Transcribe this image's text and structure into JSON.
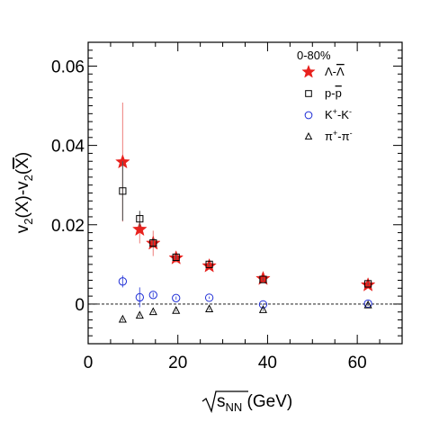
{
  "chart_data": {
    "type": "scatter",
    "title": "",
    "xlabel": "√s_NN (GeV)",
    "xlabel_parts": {
      "main": "s",
      "sub": "NN",
      "unit": " (GeV)"
    },
    "ylabel": "v2(X)-v2(X̄)",
    "ylabel_parts": {
      "v": "v",
      "sub": "2",
      "x": "(X)-",
      "xbar": "X",
      "close": ")"
    },
    "xlim": [
      0,
      70
    ],
    "ylim": [
      -0.01,
      0.066
    ],
    "x_ticks": [
      0,
      20,
      40,
      60
    ],
    "y_ticks": [
      0,
      0.02,
      0.04,
      0.06
    ],
    "x_tick_labels": [
      "0",
      "20",
      "40",
      "60"
    ],
    "y_tick_labels": [
      "0",
      "0.02",
      "0.04",
      "0.06"
    ],
    "legend_header": "0-80%",
    "legend_position": "top-right",
    "grid": false,
    "reference_line": {
      "y": 0,
      "style": "dashed"
    },
    "series": [
      {
        "name": "Λ-Λ̄",
        "label_parts": [
          "Λ-",
          "Λ"
        ],
        "marker": "star",
        "color": "#e8211d",
        "errcolor": "#f08a87",
        "points": [
          {
            "x": 7.7,
            "y": 0.0358,
            "err": 0.015
          },
          {
            "x": 11.5,
            "y": 0.0188,
            "err": 0.0035
          },
          {
            "x": 14.5,
            "y": 0.0153,
            "err": 0.0032
          },
          {
            "x": 19.6,
            "y": 0.0116,
            "err": 0.0012
          },
          {
            "x": 27,
            "y": 0.0096,
            "err": 0.0007
          },
          {
            "x": 39,
            "y": 0.0064,
            "err": 0.0005
          },
          {
            "x": 62.4,
            "y": 0.0048,
            "err": 0.0005
          }
        ]
      },
      {
        "name": "p-p̄",
        "label_parts": [
          "p-",
          "p"
        ],
        "marker": "square",
        "color": "#000000",
        "errcolor": "#555555",
        "points": [
          {
            "x": 7.7,
            "y": 0.0285,
            "err": 0.0075
          },
          {
            "x": 11.5,
            "y": 0.0215,
            "err": 0.002
          },
          {
            "x": 14.5,
            "y": 0.0154,
            "err": 0.0012
          },
          {
            "x": 19.6,
            "y": 0.0118,
            "err": 0.0006
          },
          {
            "x": 27,
            "y": 0.01,
            "err": 0.0004
          },
          {
            "x": 39,
            "y": 0.0062,
            "err": 0.0003
          },
          {
            "x": 62.4,
            "y": 0.0051,
            "err": 0.0003
          }
        ]
      },
      {
        "name": "K+-K-",
        "label_parts": [
          "K",
          "+",
          "-K",
          "-"
        ],
        "marker": "circle",
        "color": "#1f2ed6",
        "errcolor": "#5a68e0",
        "points": [
          {
            "x": 7.7,
            "y": 0.0057,
            "err": 0.0015
          },
          {
            "x": 11.5,
            "y": 0.0017,
            "err": 0.0025
          },
          {
            "x": 14.5,
            "y": 0.0023,
            "err": 0.0006
          },
          {
            "x": 19.6,
            "y": 0.0015,
            "err": 0.0004
          },
          {
            "x": 27,
            "y": 0.0016,
            "err": 0.0003
          },
          {
            "x": 39,
            "y": -0.0001,
            "err": 0.0002
          },
          {
            "x": 62.4,
            "y": 0.0001,
            "err": 0.0002
          }
        ]
      },
      {
        "name": "π+-π-",
        "label_parts": [
          "π",
          "+",
          "-π",
          "-"
        ],
        "marker": "triangle",
        "color": "#000000",
        "errcolor": "#555555",
        "points": [
          {
            "x": 7.7,
            "y": -0.0039,
            "err": 0.0003
          },
          {
            "x": 11.5,
            "y": -0.0029,
            "err": 0.0003
          },
          {
            "x": 14.5,
            "y": -0.002,
            "err": 0.0002
          },
          {
            "x": 19.6,
            "y": -0.0017,
            "err": 0.0002
          },
          {
            "x": 27,
            "y": -0.0013,
            "err": 0.0002
          },
          {
            "x": 39,
            "y": -0.0015,
            "err": 0.0002
          },
          {
            "x": 62.4,
            "y": -0.0003,
            "err": 0.0002
          }
        ]
      }
    ]
  }
}
